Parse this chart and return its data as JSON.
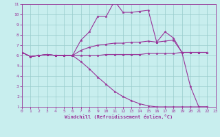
{
  "xlabel": "Windchill (Refroidissement éolien,°C)",
  "bg_color": "#c8eeee",
  "grid_color": "#99cccc",
  "line_color": "#993399",
  "xlim": [
    0,
    23
  ],
  "ylim": [
    1,
    11
  ],
  "xticks": [
    0,
    1,
    2,
    3,
    4,
    5,
    6,
    7,
    8,
    9,
    10,
    11,
    12,
    13,
    14,
    15,
    16,
    17,
    18,
    19,
    20,
    21,
    22,
    23
  ],
  "yticks": [
    1,
    2,
    3,
    4,
    5,
    6,
    7,
    8,
    9,
    10,
    11
  ],
  "series": [
    {
      "x": [
        0,
        1,
        2,
        3,
        4,
        5,
        6,
        7,
        8,
        9,
        10,
        11,
        12,
        13,
        14,
        15,
        16,
        17,
        18,
        19,
        20,
        21,
        22
      ],
      "y": [
        6.3,
        5.9,
        6.0,
        6.1,
        6.0,
        6.0,
        6.0,
        7.5,
        8.3,
        9.8,
        9.8,
        11.3,
        10.2,
        10.2,
        10.3,
        10.4,
        7.3,
        8.3,
        7.7,
        6.3,
        3.0,
        1.0,
        1.0
      ]
    },
    {
      "x": [
        0,
        1,
        2,
        3,
        4,
        5,
        6,
        7,
        8,
        9,
        10,
        11,
        12,
        13,
        14,
        15,
        16,
        17,
        18,
        19,
        20,
        21,
        22
      ],
      "y": [
        6.3,
        5.9,
        6.0,
        6.1,
        6.0,
        6.0,
        6.0,
        6.5,
        6.8,
        7.0,
        7.1,
        7.2,
        7.2,
        7.3,
        7.3,
        7.4,
        7.3,
        7.4,
        7.5,
        6.3,
        6.3,
        6.3,
        6.3
      ]
    },
    {
      "x": [
        0,
        1,
        2,
        3,
        4,
        5,
        6,
        7,
        8,
        9,
        10,
        11,
        12,
        13,
        14,
        15,
        16,
        17,
        18,
        19,
        20,
        21,
        22
      ],
      "y": [
        6.3,
        5.9,
        6.0,
        6.1,
        6.0,
        6.0,
        6.0,
        6.0,
        6.0,
        6.0,
        6.1,
        6.1,
        6.1,
        6.1,
        6.1,
        6.2,
        6.2,
        6.2,
        6.2,
        6.3,
        6.3,
        6.3,
        6.3
      ]
    },
    {
      "x": [
        0,
        1,
        2,
        3,
        4,
        5,
        6,
        7,
        8,
        9,
        10,
        11,
        12,
        13,
        14,
        15,
        16,
        17,
        18,
        19,
        20,
        21,
        22
      ],
      "y": [
        6.3,
        5.9,
        6.0,
        6.1,
        6.0,
        6.0,
        6.0,
        5.4,
        4.7,
        3.9,
        3.2,
        2.5,
        2.0,
        1.6,
        1.3,
        1.1,
        1.0,
        1.0,
        1.0,
        1.0,
        1.0,
        1.0,
        1.0
      ]
    }
  ],
  "marker": "*",
  "markersize": 2.5,
  "linewidth": 0.8,
  "tick_labelsize": 4.5,
  "xlabel_fontsize": 5.0
}
